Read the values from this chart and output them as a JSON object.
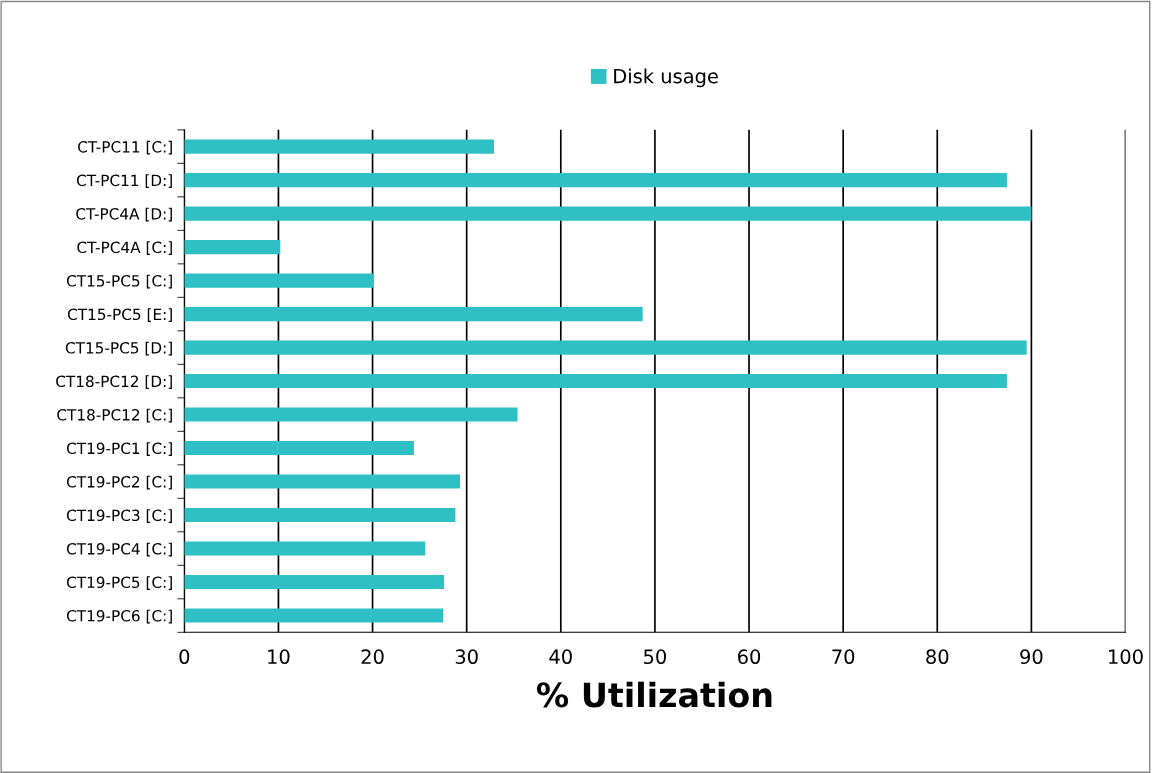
{
  "chart_data": {
    "type": "bar",
    "orientation": "horizontal",
    "xlabel": "% Utilization",
    "categories": [
      "CT-PC11 [C:]",
      "CT-PC11 [D:]",
      "CT-PC4A [D:]",
      "CT-PC4A [C:]",
      "CT15-PC5 [C:]",
      "CT15-PC5 [E:]",
      "CT15-PC5 [D:]",
      "CT18-PC12 [D:]",
      "CT18-PC12 [C:]",
      "CT19-PC1 [C:]",
      "CT19-PC2 [C:]",
      "CT19-PC3 [C:]",
      "CT19-PC4 [C:]",
      "CT19-PC5 [C:]",
      "CT19-PC6 [C:]"
    ],
    "series": [
      {
        "name": "Disk usage",
        "color": "#2ec0c4",
        "values": [
          32.9,
          87.4,
          90.0,
          10.2,
          20.1,
          48.7,
          89.5,
          87.4,
          35.4,
          24.4,
          29.3,
          28.8,
          25.6,
          27.6,
          27.5
        ]
      }
    ],
    "xlim": [
      0,
      100
    ],
    "xticks": [
      0,
      10,
      20,
      30,
      40,
      50,
      60,
      70,
      80,
      90,
      100
    ],
    "grid": "x",
    "legend": "top"
  }
}
